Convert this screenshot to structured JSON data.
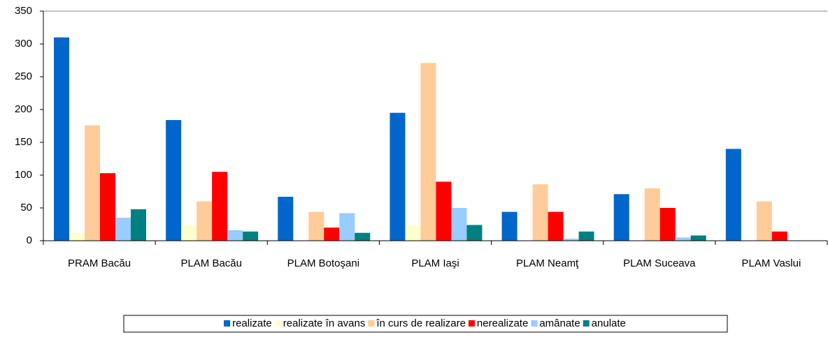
{
  "chart_data": {
    "type": "bar",
    "categories": [
      "PRAM Bacău",
      "PLAM Bacău",
      "PLAM Botoşani",
      "PLAM Iaşi",
      "PLAM Neamţ",
      "PLAM Suceava",
      "PLAM Vaslui"
    ],
    "series": [
      {
        "name": "realizate",
        "color": "#0066cc",
        "values": [
          310,
          184,
          67,
          195,
          44,
          71,
          140
        ]
      },
      {
        "name": "realizate în avans",
        "color": "#ffffcc",
        "values": [
          12,
          24,
          0,
          24,
          0,
          0,
          0
        ]
      },
      {
        "name": "în curs de realizare",
        "color": "#ffcc99",
        "values": [
          176,
          60,
          44,
          271,
          86,
          80,
          60
        ]
      },
      {
        "name": "nerealizate",
        "color": "#ff0000",
        "values": [
          103,
          105,
          20,
          90,
          44,
          50,
          14
        ]
      },
      {
        "name": "amânate",
        "color": "#99ccff",
        "values": [
          35,
          16,
          42,
          50,
          3,
          5,
          0
        ]
      },
      {
        "name": "anulate",
        "color": "#008080",
        "values": [
          48,
          14,
          12,
          24,
          14,
          8,
          0
        ]
      }
    ],
    "ylim": [
      0,
      350
    ],
    "yticks": [
      0,
      50,
      100,
      150,
      200,
      250,
      300,
      350
    ],
    "grid": false,
    "legend": "bottom"
  }
}
